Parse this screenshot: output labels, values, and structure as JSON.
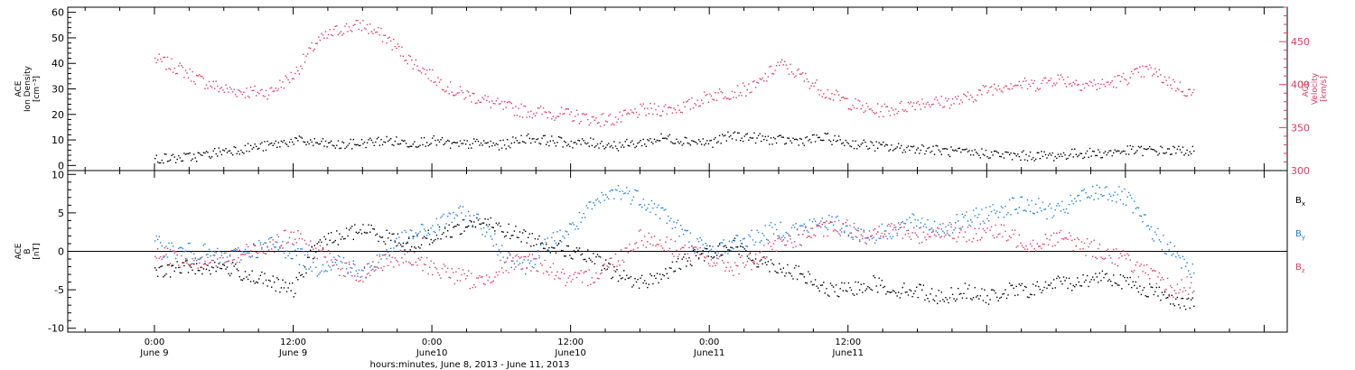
{
  "chart_data": [
    {
      "type": "scatter",
      "title": "",
      "ylabel": "ACE\nIon Density\n[cm⁻³]",
      "ylim": [
        -2,
        62
      ],
      "yticks": [
        0,
        10,
        20,
        30,
        40,
        50,
        60
      ],
      "y2label": "ACE\nVelocity\n[km/s]",
      "y2lim": [
        300,
        490
      ],
      "y2ticks": [
        300,
        350,
        400,
        450
      ],
      "series": [
        {
          "name": "",
          "axis": "left",
          "color": "#000000",
          "x": [
            0,
            2,
            4,
            6,
            8,
            10,
            12,
            14,
            16,
            18,
            20,
            22,
            24,
            26,
            28,
            30,
            32,
            34,
            36,
            38,
            40,
            42,
            44,
            46,
            48,
            50,
            52,
            54,
            56,
            58,
            60,
            62,
            64,
            66,
            68,
            70,
            72,
            74,
            76,
            78,
            80,
            82,
            84,
            86,
            88,
            90
          ],
          "values": [
            3,
            3,
            4,
            6,
            7,
            8,
            10,
            9,
            8,
            9,
            10,
            9,
            10,
            8,
            9,
            8,
            11,
            10,
            9,
            9,
            8,
            9,
            11,
            10,
            9,
            12,
            11,
            10,
            10,
            11,
            9,
            8,
            7,
            7,
            6,
            5,
            5,
            4,
            4,
            4,
            5,
            5,
            6,
            6,
            6,
            6
          ]
        },
        {
          "name": "",
          "axis": "right",
          "color": "#e8365f",
          "x": [
            0,
            2,
            4,
            6,
            8,
            10,
            12,
            14,
            16,
            18,
            20,
            22,
            24,
            26,
            28,
            30,
            32,
            34,
            36,
            38,
            40,
            42,
            44,
            46,
            48,
            50,
            52,
            54,
            56,
            58,
            60,
            62,
            64,
            66,
            68,
            70,
            72,
            74,
            76,
            78,
            80,
            82,
            84,
            86,
            88,
            90
          ],
          "values": [
            430,
            420,
            405,
            395,
            392,
            392,
            412,
            450,
            465,
            470,
            455,
            430,
            410,
            392,
            385,
            375,
            370,
            368,
            365,
            360,
            360,
            370,
            372,
            375,
            388,
            392,
            398,
            425,
            410,
            392,
            380,
            370,
            372,
            380,
            380,
            383,
            395,
            402,
            400,
            408,
            402,
            400,
            408,
            418,
            402,
            388
          ]
        }
      ]
    },
    {
      "type": "scatter",
      "title": "",
      "xlabel": "hours:minutes, June  8, 2013 - June 11, 2013",
      "ylabel": "ACE\nB\n[nT]",
      "ylim": [
        -10.5,
        10.5
      ],
      "yticks": [
        -10,
        -5,
        0,
        5,
        10
      ],
      "xlim": [
        -7.5,
        98
      ],
      "x_unit": "hours from 0:00 June 9, 2013",
      "xticks": [
        {
          "x": 0,
          "line1": "0:00",
          "line2": "June 9"
        },
        {
          "x": 12,
          "line1": "12:00",
          "line2": "June 9"
        },
        {
          "x": 24,
          "line1": "0:00",
          "line2": "June10"
        },
        {
          "x": 36,
          "line1": "12:00",
          "line2": "June10"
        },
        {
          "x": 48,
          "line1": "0:00",
          "line2": "June11"
        },
        {
          "x": 60,
          "line1": "12:00",
          "line2": "June11"
        }
      ],
      "series": [
        {
          "name": "Bx",
          "color": "#000000",
          "x": [
            0,
            2,
            4,
            6,
            8,
            10,
            12,
            14,
            16,
            18,
            20,
            22,
            24,
            26,
            28,
            30,
            32,
            34,
            36,
            38,
            40,
            42,
            44,
            46,
            48,
            50,
            52,
            54,
            56,
            58,
            60,
            62,
            64,
            66,
            68,
            70,
            72,
            74,
            76,
            78,
            80,
            82,
            84,
            86,
            88,
            90
          ],
          "values": [
            -3,
            -2,
            -2,
            -2,
            -3,
            -4,
            -5,
            1,
            2,
            3,
            2,
            1,
            2,
            3,
            4,
            3,
            2,
            1,
            0,
            -1,
            -3,
            -4,
            -3,
            -1,
            0,
            1,
            -1,
            -2,
            -3,
            -5,
            -5,
            -4,
            -5,
            -5,
            -6,
            -5,
            -6,
            -5,
            -5,
            -4,
            -4,
            -3,
            -4,
            -5,
            -6,
            -7
          ]
        },
        {
          "name": "By",
          "color": "#1a80e6",
          "x": [
            0,
            2,
            4,
            6,
            8,
            10,
            12,
            14,
            16,
            18,
            20,
            22,
            24,
            26,
            28,
            30,
            32,
            34,
            36,
            38,
            40,
            42,
            44,
            46,
            48,
            50,
            52,
            54,
            56,
            58,
            60,
            62,
            64,
            66,
            68,
            70,
            72,
            74,
            76,
            78,
            80,
            82,
            84,
            86,
            88,
            90
          ],
          "values": [
            1,
            0,
            0,
            -1,
            0,
            1,
            0,
            -2,
            -1,
            -3,
            0,
            2,
            3,
            5,
            4,
            0,
            -2,
            1,
            3,
            6,
            8,
            7,
            5,
            2,
            0,
            1,
            2,
            3,
            3,
            4,
            3,
            2,
            3,
            4,
            3,
            4,
            5,
            6,
            6,
            5,
            7,
            8,
            7,
            3,
            0,
            -3
          ]
        },
        {
          "name": "Bz",
          "color": "#e8365f",
          "x": [
            0,
            2,
            4,
            6,
            8,
            10,
            12,
            14,
            16,
            18,
            20,
            22,
            24,
            26,
            28,
            30,
            32,
            34,
            36,
            38,
            40,
            42,
            44,
            46,
            48,
            50,
            52,
            54,
            56,
            58,
            60,
            62,
            64,
            66,
            68,
            70,
            72,
            74,
            76,
            78,
            80,
            82,
            84,
            86,
            88,
            90
          ],
          "values": [
            0,
            -1,
            -1,
            -1,
            0,
            1,
            2,
            0,
            -2,
            -3,
            -1,
            -1,
            -2,
            -3,
            -4,
            -2,
            -1,
            -2,
            -4,
            -3,
            -1,
            2,
            1,
            0,
            -1,
            -2,
            -1,
            1,
            2,
            3,
            3,
            2,
            3,
            2,
            3,
            2,
            3,
            2,
            1,
            2,
            1,
            0,
            -1,
            -3,
            -5,
            -4
          ]
        }
      ]
    }
  ]
}
